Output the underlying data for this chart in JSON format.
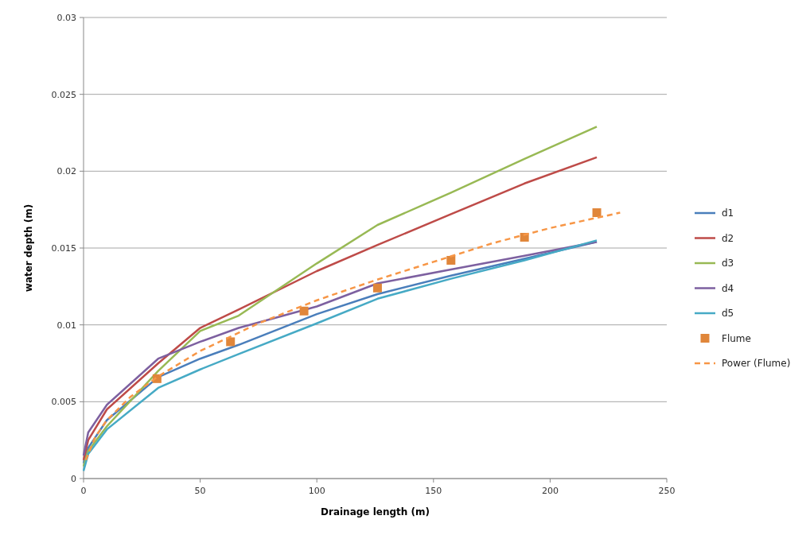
{
  "chart_data": {
    "type": "line",
    "xlabel": "Drainage length  (m)",
    "ylabel": "water depth (m)",
    "xlim": [
      0,
      250
    ],
    "xticks": [
      0,
      50,
      100,
      150,
      200,
      250
    ],
    "ylim": [
      0,
      0.03
    ],
    "yticks": [
      0,
      0.005,
      0.01,
      0.015,
      0.02,
      0.025,
      0.03
    ],
    "grid": "y",
    "legend": "right",
    "marker": "none",
    "x": [
      0,
      2,
      10,
      32,
      50,
      66.5,
      100,
      126,
      157.5,
      189,
      220
    ],
    "series": [
      {
        "name": "d1",
        "color": "#4a7ebb",
        "values": [
          0.001,
          0.002,
          0.0038,
          0.0066,
          0.0078,
          0.0087,
          0.0107,
          0.012,
          0.0132,
          0.0143,
          0.0154
        ]
      },
      {
        "name": "d2",
        "color": "#be4b48",
        "values": [
          0.0012,
          0.0025,
          0.0045,
          0.0075,
          0.0098,
          0.011,
          0.0135,
          0.0152,
          0.0172,
          0.0192,
          0.0209
        ]
      },
      {
        "name": "d3",
        "color": "#98b954",
        "values": [
          0.0008,
          0.0018,
          0.0034,
          0.007,
          0.0096,
          0.0106,
          0.014,
          0.0165,
          0.0186,
          0.0208,
          0.0229
        ]
      },
      {
        "name": "d4",
        "color": "#7d60a0",
        "values": [
          0.0015,
          0.003,
          0.0048,
          0.0078,
          0.0089,
          0.0098,
          0.0112,
          0.0127,
          0.0136,
          0.0145,
          0.0154
        ]
      },
      {
        "name": "d5",
        "color": "#46aac5",
        "values": [
          0.0005,
          0.0016,
          0.0032,
          0.0059,
          0.0071,
          0.0081,
          0.0101,
          0.0117,
          0.013,
          0.0142,
          0.0155
        ]
      },
      {
        "name": "Flume",
        "type": "scatter",
        "marker": "square",
        "color": "#e0863a",
        "x": [
          31.5,
          63,
          94.5,
          126,
          157.5,
          189,
          220
        ],
        "values": [
          0.0065,
          0.0089,
          0.0109,
          0.0124,
          0.0142,
          0.0157,
          0.0173
        ]
      },
      {
        "name": "Power (Flume)",
        "line_style": "dashed",
        "color": "#f79646",
        "x": [
          1,
          5,
          10,
          20,
          31.5,
          50,
          75,
          100,
          125,
          150,
          175,
          200,
          230
        ],
        "values": [
          0.0012,
          0.0027,
          0.0038,
          0.0053,
          0.0066,
          0.0083,
          0.0101,
          0.0116,
          0.0129,
          0.0141,
          0.0153,
          0.0163,
          0.0173
        ]
      }
    ]
  }
}
